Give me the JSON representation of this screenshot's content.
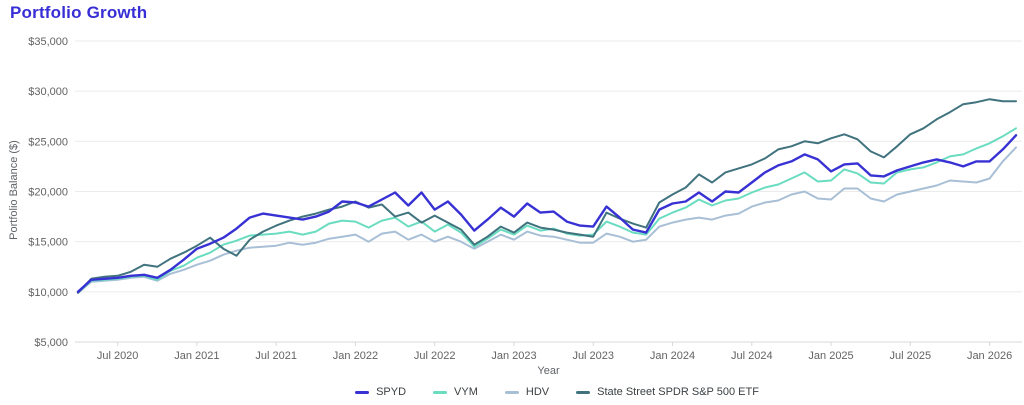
{
  "title": "Portfolio Growth",
  "chart_data": {
    "type": "line",
    "title": "Portfolio Growth",
    "xlabel": "Year",
    "ylabel": "Portfolio Balance ($)",
    "ylim": [
      5000,
      35000
    ],
    "y_tick_step": 5000,
    "y_tick_labels": [
      "$5,000",
      "$10,000",
      "$15,000",
      "$20,000",
      "$25,000",
      "$30,000",
      "$35,000"
    ],
    "grid": "horizontal",
    "legend_position": "bottom",
    "x_months": [
      "Apr 2020",
      "May 2020",
      "Jun 2020",
      "Jul 2020",
      "Aug 2020",
      "Sep 2020",
      "Oct 2020",
      "Nov 2020",
      "Dec 2020",
      "Jan 2021",
      "Feb 2021",
      "Mar 2021",
      "Apr 2021",
      "May 2021",
      "Jun 2021",
      "Jul 2021",
      "Aug 2021",
      "Sep 2021",
      "Oct 2021",
      "Nov 2021",
      "Dec 2021",
      "Jan 2022",
      "Feb 2022",
      "Mar 2022",
      "Apr 2022",
      "May 2022",
      "Jun 2022",
      "Jul 2022",
      "Aug 2022",
      "Sep 2022",
      "Oct 2022",
      "Nov 2022",
      "Dec 2022",
      "Jan 2023",
      "Feb 2023",
      "Mar 2023",
      "Apr 2023",
      "May 2023",
      "Jun 2023",
      "Jul 2023",
      "Aug 2023",
      "Sep 2023",
      "Oct 2023",
      "Nov 2023",
      "Dec 2023",
      "Jan 2024",
      "Feb 2024",
      "Mar 2024",
      "Apr 2024",
      "May 2024",
      "Jun 2024",
      "Jul 2024",
      "Aug 2024",
      "Sep 2024",
      "Oct 2024",
      "Nov 2024",
      "Dec 2024",
      "Jan 2025",
      "Feb 2025",
      "Mar 2025",
      "Apr 2025",
      "May 2025",
      "Jun 2025",
      "Jul 2025",
      "Aug 2025",
      "Sep 2025",
      "Oct 2025",
      "Nov 2025",
      "Dec 2025",
      "Jan 2026",
      "Feb 2026",
      "Mar 2026"
    ],
    "x_ticks": [
      {
        "month_index": 3,
        "label": "Jul 2020"
      },
      {
        "month_index": 9,
        "label": "Jan 2021"
      },
      {
        "month_index": 15,
        "label": "Jul 2021"
      },
      {
        "month_index": 21,
        "label": "Jan 2022"
      },
      {
        "month_index": 27,
        "label": "Jul 2022"
      },
      {
        "month_index": 33,
        "label": "Jan 2023"
      },
      {
        "month_index": 39,
        "label": "Jul 2023"
      },
      {
        "month_index": 45,
        "label": "Jan 2024"
      },
      {
        "month_index": 51,
        "label": "Jul 2024"
      },
      {
        "month_index": 57,
        "label": "Jan 2025"
      },
      {
        "month_index": 63,
        "label": "Jul 2025"
      },
      {
        "month_index": 69,
        "label": "Jan 2026"
      }
    ],
    "series": [
      {
        "name": "SPYD",
        "color": "#3831d4",
        "values": [
          10000,
          11200,
          11300,
          11400,
          11600,
          11700,
          11400,
          12200,
          13200,
          14300,
          14800,
          15400,
          16300,
          17400,
          17800,
          17600,
          17400,
          17200,
          17500,
          18000,
          19000,
          18900,
          18500,
          19200,
          19900,
          18600,
          19900,
          18200,
          19000,
          17700,
          16100,
          17200,
          18400,
          17500,
          18800,
          17900,
          18000,
          17000,
          16600,
          16500,
          18500,
          17400,
          16200,
          15900,
          18200,
          18800,
          19000,
          19900,
          19000,
          20000,
          19900,
          20900,
          21900,
          22600,
          23000,
          23700,
          23200,
          22000,
          22700,
          22800,
          21600,
          21500,
          22100,
          22500,
          22900,
          23200,
          22900,
          22500,
          23000,
          23000,
          24200,
          25600
        ]
      },
      {
        "name": "VYM",
        "color": "#6adcc0",
        "values": [
          9900,
          11100,
          11200,
          11300,
          11500,
          11600,
          11200,
          12100,
          12600,
          13400,
          13900,
          14700,
          15100,
          15600,
          15700,
          15800,
          16000,
          15700,
          16000,
          16800,
          17100,
          17000,
          16400,
          17100,
          17400,
          16500,
          17000,
          16000,
          16700,
          15900,
          14500,
          15300,
          16200,
          15700,
          16600,
          16100,
          16300,
          15800,
          15600,
          15700,
          17000,
          16500,
          15900,
          15700,
          17300,
          17900,
          18400,
          19200,
          18600,
          19100,
          19300,
          19900,
          20400,
          20700,
          21300,
          21900,
          21000,
          21100,
          22200,
          21800,
          20900,
          20800,
          21900,
          22200,
          22400,
          22900,
          23500,
          23700,
          24300,
          24800,
          25500,
          26300
        ]
      },
      {
        "name": "HDV",
        "color": "#a8bfd6",
        "values": [
          9900,
          11000,
          11100,
          11200,
          11400,
          11500,
          11100,
          11800,
          12200,
          12700,
          13100,
          13700,
          14100,
          14400,
          14500,
          14600,
          14900,
          14700,
          14900,
          15300,
          15500,
          15700,
          15000,
          15800,
          16000,
          15200,
          15700,
          15000,
          15500,
          15000,
          14300,
          15000,
          15700,
          15200,
          16000,
          15600,
          15500,
          15200,
          14900,
          14900,
          15800,
          15500,
          15000,
          15200,
          16500,
          16900,
          17200,
          17400,
          17200,
          17600,
          17800,
          18500,
          18900,
          19100,
          19700,
          20000,
          19300,
          19200,
          20300,
          20300,
          19300,
          19000,
          19700,
          20000,
          20300,
          20600,
          21100,
          21000,
          20900,
          21300,
          23000,
          24400
        ]
      },
      {
        "name": "State Street SPDR S&P 500 ETF",
        "color": "#40737e",
        "values": [
          9900,
          11300,
          11500,
          11600,
          12000,
          12700,
          12500,
          13300,
          13900,
          14600,
          15400,
          14300,
          13600,
          15200,
          16000,
          16600,
          17100,
          17500,
          17800,
          18200,
          18500,
          19000,
          18400,
          18700,
          17500,
          17900,
          16900,
          17600,
          16900,
          16200,
          14700,
          15500,
          16500,
          15900,
          16900,
          16400,
          16200,
          15900,
          15700,
          15500,
          17900,
          17300,
          16800,
          16400,
          18900,
          19700,
          20400,
          21700,
          20900,
          21900,
          22300,
          22700,
          23300,
          24200,
          24500,
          25000,
          24800,
          25300,
          25700,
          25200,
          24000,
          23400,
          24500,
          25700,
          26300,
          27200,
          27900,
          28700,
          28900,
          29200,
          29000,
          29000
        ]
      }
    ],
    "style": {
      "grid_color": "#ebebeb",
      "axis_line_color": "#d9d9d9",
      "tick_text_color": "#636363",
      "title_color": "#372fd5",
      "background": "#ffffff"
    }
  }
}
